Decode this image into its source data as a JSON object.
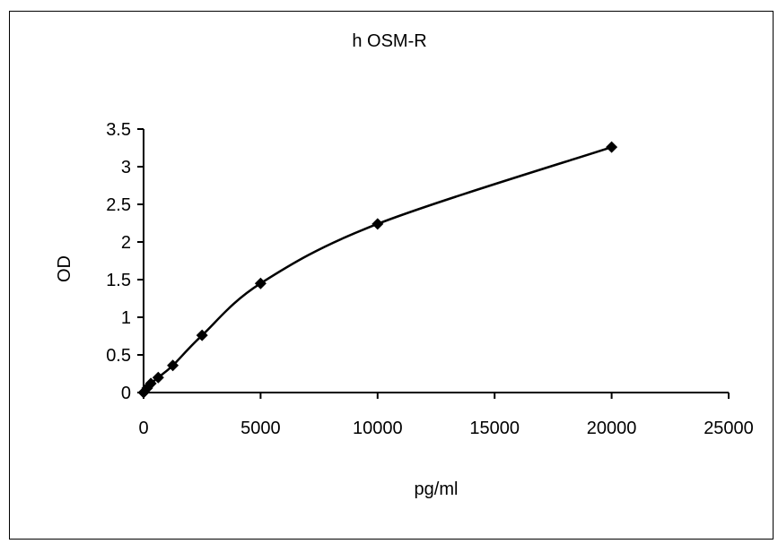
{
  "chart_data": {
    "type": "scatter",
    "title": "h OSM-R",
    "xlabel": "pg/ml",
    "ylabel": "OD",
    "xlim": [
      0,
      25000
    ],
    "ylim": [
      0,
      3.5
    ],
    "xticks": [
      0,
      5000,
      10000,
      15000,
      20000,
      25000
    ],
    "yticks": [
      0,
      0.5,
      1,
      1.5,
      2,
      2.5,
      3,
      3.5
    ],
    "grid": false,
    "legend": "none",
    "marker": "diamond",
    "line": "smooth",
    "series": [
      {
        "x": [
          0,
          156,
          312,
          625,
          1250,
          2500,
          5000,
          10000,
          20000
        ],
        "y": [
          0.0,
          0.06,
          0.12,
          0.2,
          0.36,
          0.76,
          1.45,
          2.24,
          3.26
        ]
      }
    ],
    "colors": {
      "series": "#000000"
    }
  }
}
